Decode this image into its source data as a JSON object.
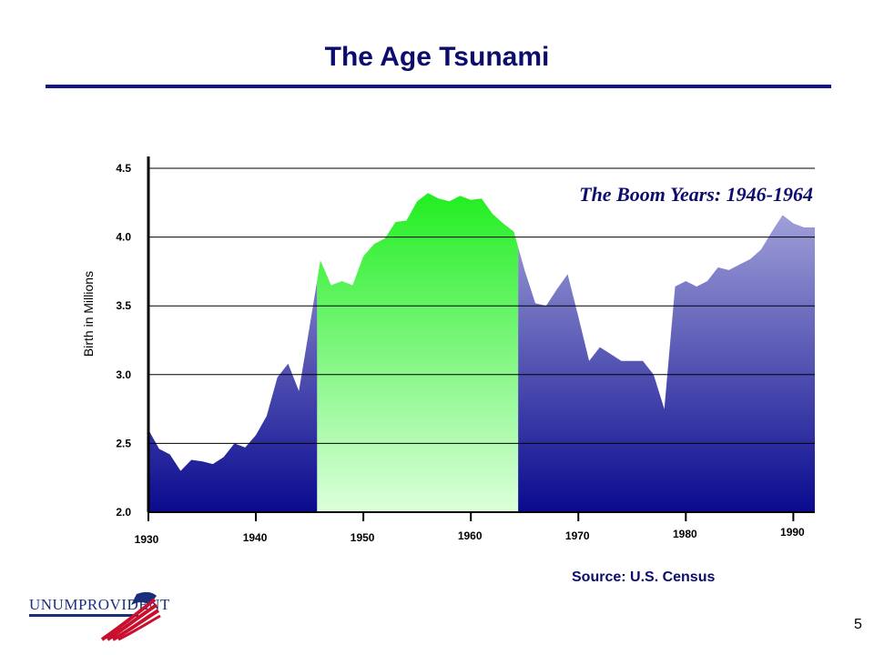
{
  "header": {
    "title": "The Age Tsunami"
  },
  "footer": {
    "source": "Source: U.S. Census",
    "page_number": "5",
    "logo_text": "UNUMPROVIDENT"
  },
  "colors": {
    "title": "#0c0c6e",
    "area_top": "#aaaadd",
    "area_bottom": "#0a0a8f",
    "boom_top": "#22ee22",
    "boom_bottom": "#dcffdc"
  },
  "chart_data": {
    "type": "area",
    "title": "The Age Tsunami",
    "xlabel": "",
    "ylabel": "Birth in Millions",
    "xlim": [
      1930,
      1992
    ],
    "ylim": [
      2.0,
      4.5
    ],
    "yticks": [
      "2.0",
      "2.5",
      "3.0",
      "3.5",
      "4.0",
      "4.5"
    ],
    "xticks": [
      "1930",
      "1940",
      "1950",
      "1960",
      "1970",
      "1980",
      "1990"
    ],
    "grid": true,
    "annotation": "The Boom Years: 1946-1964",
    "highlight_range": [
      1945.7,
      1964.4
    ],
    "series": [
      {
        "x": [
          1930,
          1931,
          1932,
          1933,
          1934,
          1935,
          1936,
          1937,
          1938,
          1939,
          1940,
          1941,
          1942,
          1943,
          1944,
          1945,
          1946,
          1947,
          1948,
          1949,
          1950,
          1951,
          1952,
          1953,
          1954,
          1955,
          1956,
          1957,
          1958,
          1959,
          1960,
          1961,
          1962,
          1963,
          1964,
          1965,
          1966,
          1967,
          1968,
          1969,
          1970,
          1971,
          1972,
          1973,
          1974,
          1975,
          1976,
          1977,
          1978,
          1979,
          1980,
          1981,
          1982,
          1983,
          1984,
          1985,
          1986,
          1987,
          1988,
          1989,
          1990,
          1991,
          1992
        ],
        "values": [
          2.6,
          2.46,
          2.42,
          2.3,
          2.38,
          2.37,
          2.35,
          2.4,
          2.5,
          2.47,
          2.56,
          2.7,
          2.98,
          3.08,
          2.88,
          3.35,
          3.83,
          3.65,
          3.68,
          3.65,
          3.86,
          3.95,
          3.99,
          4.11,
          4.12,
          4.26,
          4.32,
          4.28,
          4.26,
          4.3,
          4.27,
          4.28,
          4.17,
          4.1,
          4.04,
          3.76,
          3.52,
          3.5,
          3.62,
          3.73,
          3.42,
          3.1,
          3.2,
          3.15,
          3.1,
          3.1,
          3.1,
          3.0,
          2.75,
          3.64,
          3.68,
          3.64,
          3.68,
          3.78,
          3.76,
          3.8,
          3.84,
          3.91,
          4.04,
          4.16,
          4.1,
          4.07,
          4.07
        ]
      }
    ]
  }
}
